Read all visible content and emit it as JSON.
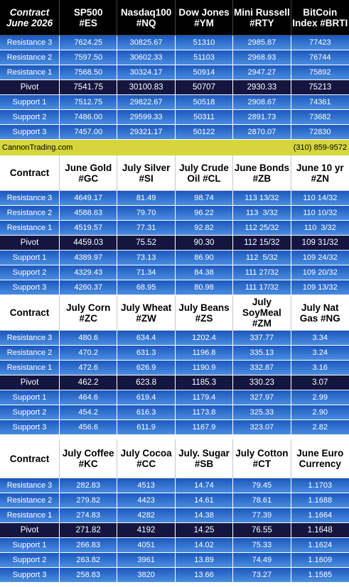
{
  "tables": [
    {
      "header": {
        "contract": "Contract\nJune 2026",
        "columns": [
          "SP500\n#ES",
          "Nasdaq100\n#NQ",
          "Dow Jones\n#YM",
          "Mini Russell\n#RTY",
          "BitCoin\nIndex #BRTI"
        ]
      },
      "rows": [
        {
          "label": "Resistance 3",
          "values": [
            "7624.25",
            "30825.67",
            "51310",
            "2985.87",
            "77423"
          ]
        },
        {
          "label": "Resistance 2",
          "values": [
            "7597.50",
            "30602.33",
            "51103",
            "2968.93",
            "76744"
          ]
        },
        {
          "label": "Resistance 1",
          "values": [
            "7568.50",
            "30324.17",
            "50914",
            "2947.27",
            "75892"
          ]
        },
        {
          "label": "Pivot",
          "values": [
            "7541.75",
            "30100.83",
            "50707",
            "2930.33",
            "75213"
          ]
        },
        {
          "label": "Support 1",
          "values": [
            "7512.75",
            "29822.67",
            "50518",
            "2908.67",
            "74361"
          ]
        },
        {
          "label": "Support 2",
          "values": [
            "7486.00",
            "29599.33",
            "50311",
            "2891.73",
            "73682"
          ]
        },
        {
          "label": "Support 3",
          "values": [
            "7457.00",
            "29321.17",
            "50122",
            "2870.07",
            "72830"
          ]
        }
      ]
    },
    {
      "header": {
        "contract": "Contract",
        "columns": [
          "June Gold\n#GC",
          "July Silver\n#SI",
          "July Crude\nOil #CL",
          "June Bonds\n#ZB",
          "June 10 yr\n#ZN"
        ]
      },
      "rows": [
        {
          "label": "Resistance 3",
          "values": [
            "4649.17",
            "81.49",
            "98.74",
            "113 13/32",
            "110 14/32"
          ]
        },
        {
          "label": "Resistance 2",
          "values": [
            "4588.63",
            "79.70",
            "96.22",
            "113  3/32",
            "110 10/32"
          ]
        },
        {
          "label": "Resistance 1",
          "values": [
            "4519.57",
            "77.31",
            "92.82",
            "112 25/32",
            "110  3/32"
          ]
        },
        {
          "label": "Pivot",
          "values": [
            "4459.03",
            "75.52",
            "90.30",
            "112 15/32",
            "109 31/32"
          ]
        },
        {
          "label": "Support 1",
          "values": [
            "4389.97",
            "73.13",
            "86.90",
            "112  5/32",
            "109 24/32"
          ]
        },
        {
          "label": "Support 2",
          "values": [
            "4329.43",
            "71.34",
            "84.38",
            "111 27/32",
            "109 20/32"
          ]
        },
        {
          "label": "Support 3",
          "values": [
            "4260.37",
            "68.95",
            "80.98",
            "111 17/32",
            "109 13/32"
          ]
        }
      ]
    },
    {
      "header": {
        "contract": "Contract",
        "columns": [
          "July Corn\n#ZC",
          "July  Wheat\n#ZW",
          "July Beans\n#ZS",
          "July\nSoyMeal\n#ZM",
          "July Nat\nGas #NG"
        ]
      },
      "rows": [
        {
          "label": "Resistance 3",
          "values": [
            "480.6",
            "634.4",
            "1202.4",
            "337.77",
            "3.34"
          ]
        },
        {
          "label": "Resistance 2",
          "values": [
            "470.2",
            "631.3",
            "1196.8",
            "335.13",
            "3.24"
          ]
        },
        {
          "label": "Resistance 1",
          "values": [
            "472.6",
            "626.9",
            "1190.9",
            "332.87",
            "3.16"
          ]
        },
        {
          "label": "Pivot",
          "values": [
            "462.2",
            "623.8",
            "1185.3",
            "330.23",
            "3.07"
          ]
        },
        {
          "label": "Support 1",
          "values": [
            "464.6",
            "619.4",
            "1179.4",
            "327.97",
            "2.99"
          ]
        },
        {
          "label": "Support 2",
          "values": [
            "454.2",
            "616.3",
            "1173.8",
            "325.33",
            "2.90"
          ]
        },
        {
          "label": "Support 3",
          "values": [
            "456.6",
            "611.9",
            "1167.9",
            "323.07",
            "2.82"
          ]
        }
      ]
    },
    {
      "header": {
        "contract": "Contract",
        "columns": [
          "July Coffee\n#KC",
          "July Cocoa\n#CC",
          "July. Sugar\n#SB",
          "July Cotton\n#CT",
          "June Euro\nCurrency"
        ]
      },
      "rows": [
        {
          "label": "Resistance 3",
          "values": [
            "282.83",
            "4513",
            "14.74",
            "79.45",
            "1.1703"
          ]
        },
        {
          "label": "Resistance 2",
          "values": [
            "279.82",
            "4423",
            "14.61",
            "78.61",
            "1.1688"
          ]
        },
        {
          "label": "Resistance 1",
          "values": [
            "274.83",
            "4282",
            "14.38",
            "77.39",
            "1.1664"
          ]
        },
        {
          "label": "Pivot",
          "values": [
            "271.82",
            "4192",
            "14.25",
            "76.55",
            "1.1648"
          ]
        },
        {
          "label": "Support 1",
          "values": [
            "266.83",
            "4051",
            "14.02",
            "75.33",
            "1.1624"
          ]
        },
        {
          "label": "Support 2",
          "values": [
            "263.82",
            "3961",
            "13.89",
            "74.49",
            "1.1609"
          ]
        },
        {
          "label": "Support 3",
          "values": [
            "258.83",
            "3820",
            "13.66",
            "73.27",
            "1.1585"
          ]
        }
      ]
    }
  ],
  "banner": {
    "left": "CannonTrading.com",
    "right": "(310) 859-9572"
  }
}
